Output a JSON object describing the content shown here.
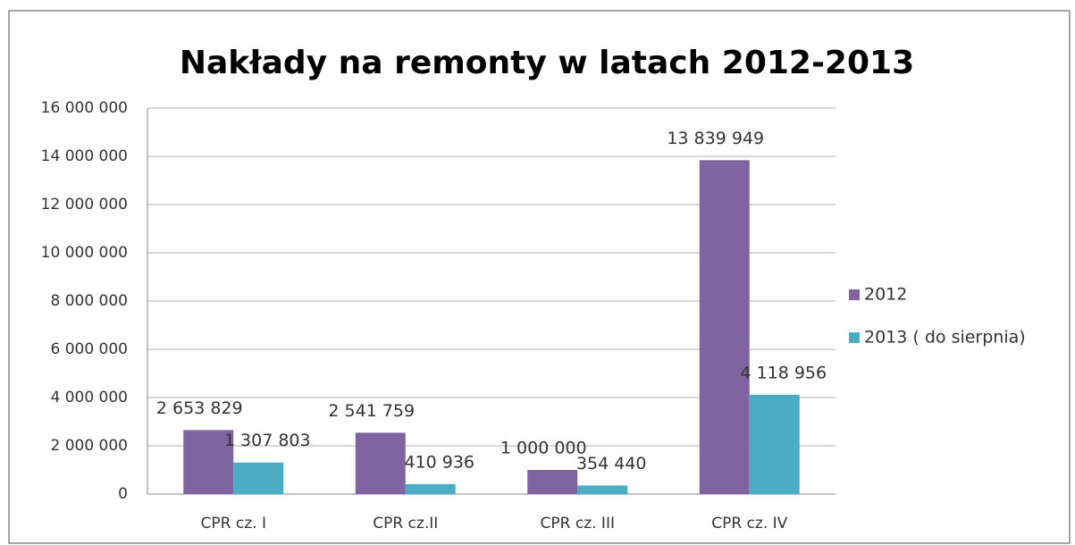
{
  "chart_data": {
    "type": "bar",
    "title": "Nakłady na remonty w latach 2012-2013",
    "categories": [
      "CPR cz. I",
      "CPR cz.II",
      "CPR cz. III",
      "CPR cz. IV"
    ],
    "series": [
      {
        "name": "2012",
        "color": "#8064a2",
        "values": [
          2653829,
          2541759,
          1000000,
          13839949
        ],
        "value_labels": [
          "2 653 829",
          "2 541 759",
          "1 000 000",
          "13 839 949"
        ]
      },
      {
        "name": "2013 ( do sierpnia)",
        "color": "#4bacc6",
        "values": [
          1307803,
          410936,
          354440,
          4118956
        ],
        "value_labels": [
          "1 307 803",
          "410 936",
          "354 440",
          "4 118 956"
        ]
      }
    ],
    "ylim": [
      0,
      16000000
    ],
    "yticks": [
      0,
      {
        "value": 2000000,
        "label": "2 000 000"
      },
      {
        "value": 4000000,
        "label": "4 000 000"
      },
      {
        "value": 6000000,
        "label": "6 000 000"
      },
      {
        "value": 8000000,
        "label": "8 000 000"
      },
      {
        "value": 10000000,
        "label": "10 000 000"
      },
      {
        "value": 12000000,
        "label": "12 000 000"
      },
      {
        "value": 14000000,
        "label": "14 000 000"
      },
      {
        "value": 16000000,
        "label": "16 000 000"
      }
    ],
    "grid": true,
    "legend": "right"
  }
}
